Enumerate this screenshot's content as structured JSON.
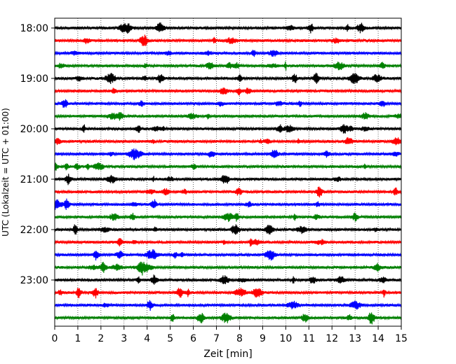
{
  "chart_data": {
    "type": "line",
    "title": "",
    "xlabel": "Zeit  [min]",
    "ylabel": "UTC (Lokalzeit = UTC + 01:00)",
    "xlim": [
      0,
      15
    ],
    "x_ticks": [
      "0",
      "1",
      "2",
      "3",
      "4",
      "5",
      "6",
      "7",
      "8",
      "9",
      "10",
      "11",
      "12",
      "13",
      "14",
      "15"
    ],
    "y_ticks": [
      {
        "label": "18:00",
        "trace_index": 0
      },
      {
        "label": "19:00",
        "trace_index": 4
      },
      {
        "label": "20:00",
        "trace_index": 8
      },
      {
        "label": "21:00",
        "trace_index": 12
      },
      {
        "label": "22:00",
        "trace_index": 16
      },
      {
        "label": "23:00",
        "trace_index": 20
      }
    ],
    "grid": "vertical dotted lines at each minute",
    "trace_interval_min": 15,
    "trace_colors": [
      "#000000",
      "#ff0000",
      "#0000ff",
      "#008000"
    ],
    "traces": [
      {
        "start": "18:00",
        "color": "#000000"
      },
      {
        "start": "18:15",
        "color": "#ff0000"
      },
      {
        "start": "18:30",
        "color": "#0000ff"
      },
      {
        "start": "18:45",
        "color": "#008000"
      },
      {
        "start": "19:00",
        "color": "#000000"
      },
      {
        "start": "19:15",
        "color": "#ff0000"
      },
      {
        "start": "19:30",
        "color": "#0000ff"
      },
      {
        "start": "19:45",
        "color": "#008000"
      },
      {
        "start": "20:00",
        "color": "#000000"
      },
      {
        "start": "20:15",
        "color": "#ff0000"
      },
      {
        "start": "20:30",
        "color": "#0000ff"
      },
      {
        "start": "20:45",
        "color": "#008000"
      },
      {
        "start": "21:00",
        "color": "#000000"
      },
      {
        "start": "21:15",
        "color": "#ff0000"
      },
      {
        "start": "21:30",
        "color": "#0000ff"
      },
      {
        "start": "21:45",
        "color": "#008000"
      },
      {
        "start": "22:00",
        "color": "#000000"
      },
      {
        "start": "22:15",
        "color": "#ff0000"
      },
      {
        "start": "22:30",
        "color": "#0000ff"
      },
      {
        "start": "22:45",
        "color": "#008000"
      },
      {
        "start": "23:00",
        "color": "#000000"
      },
      {
        "start": "23:15",
        "color": "#ff0000"
      },
      {
        "start": "23:30",
        "color": "#0000ff"
      },
      {
        "start": "23:45",
        "color": "#008000"
      }
    ]
  }
}
